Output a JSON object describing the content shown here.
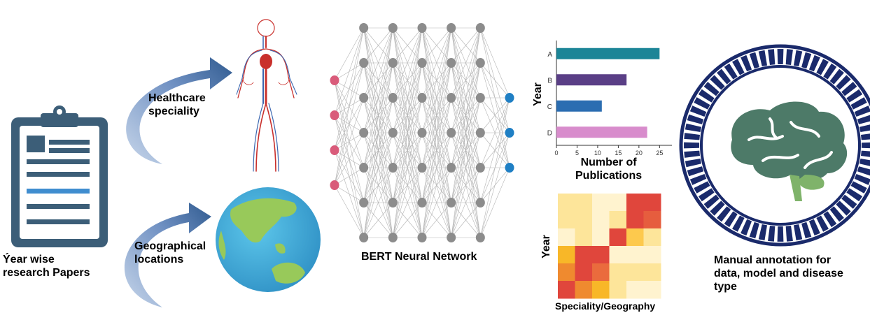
{
  "labels": {
    "papers": "Ýear wise\nresearch Papers",
    "healthcare": "Healthcare\nspeciality",
    "geographical": "Geographical\nlocations",
    "bert": "BERT Neural Network",
    "manual": "Manual annotation for\ndata, model and disease\ntype"
  },
  "icons": {
    "clipboard": "clipboard-icon",
    "body": "circulatory-system-icon",
    "globe": "globe-icon",
    "brain": "brain-icon"
  },
  "colors": {
    "clipboard": "#3c5e78",
    "arrow": "#2f5a8f",
    "input_node": "#d95b7a",
    "hidden_node": "#8c8c8c",
    "output_node": "#1f7fc4",
    "brain": "#4d7a68",
    "ring": "#1a2a6b"
  },
  "network": {
    "layers": [
      4,
      7,
      7,
      7,
      7,
      7,
      3
    ]
  },
  "chart_data": [
    {
      "type": "bar",
      "orientation": "horizontal",
      "categories": [
        "A",
        "B",
        "C",
        "D"
      ],
      "values": [
        25,
        17,
        11,
        22
      ],
      "colors": [
        "#1c8597",
        "#5a3f86",
        "#2b6db1",
        "#d88ccc"
      ],
      "xticks": [
        0,
        5,
        10,
        15,
        20,
        25
      ],
      "xlim": [
        0,
        28
      ],
      "xlabel": "Number of\nPublications",
      "ylabel": "Year"
    },
    {
      "type": "heatmap",
      "ylabel": "Year",
      "xlabel": "Speciality/Geography",
      "rows": 6,
      "cols": 6,
      "cells": [
        [
          "#fde59a",
          "#fde59a",
          "#fff3cf",
          "#fff3cf",
          "#e0463c",
          "#e0463c"
        ],
        [
          "#fde59a",
          "#fde59a",
          "#fff3cf",
          "#fde59a",
          "#e0463c",
          "#e65d3e"
        ],
        [
          "#fff3cf",
          "#fde59a",
          "#fff3cf",
          "#e0463c",
          "#fdc94d",
          "#fde59a"
        ],
        [
          "#f8b728",
          "#e0463c",
          "#e0463c",
          "#fff3cf",
          "#fff3cf",
          "#fff3cf"
        ],
        [
          "#ef8a2f",
          "#e0463c",
          "#ea6b3d",
          "#fde59a",
          "#fde59a",
          "#fde59a"
        ],
        [
          "#e0463c",
          "#ef8a2f",
          "#f8b728",
          "#fde59a",
          "#fff3cf",
          "#fff3cf"
        ]
      ]
    }
  ]
}
